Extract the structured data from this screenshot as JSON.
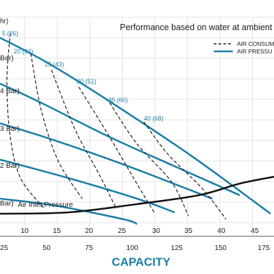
{
  "chart_data": {
    "type": "line",
    "title": "Performance based on water at ambient",
    "xlabel": "CAPACITY",
    "x_primary_ticks": [
      "25",
      "50",
      "75",
      "100",
      "125",
      "150",
      "175"
    ],
    "x_secondary_ticks": [
      "10",
      "15",
      "20",
      "25",
      "30",
      "35",
      "40",
      "45"
    ],
    "legend": [
      {
        "label": "AIR CONSUM",
        "style": "dashed",
        "color": "#1a1a1a"
      },
      {
        "label": "AIR PRESSU",
        "style": "solid",
        "color": "#1a7fa8"
      }
    ],
    "y_axis_fragment": "hr)",
    "pressure_labels": [
      " Bar)",
      "4 Bar)",
      "3 Bar)",
      "2 Bar)",
      "Bar)"
    ],
    "inlet_label": "Air Inlet Pressure",
    "consumption_labels": [
      "5 (26)",
      "20 (34)",
      "25 (43)",
      "30 (51)",
      "35 (60)",
      "40 (68)"
    ],
    "series": [
      {
        "kind": "pressure",
        "points": [
          [
            0,
            55
          ],
          [
            70,
            92
          ],
          [
            160,
            148
          ],
          [
            280,
            228
          ],
          [
            395,
            312
          ]
        ]
      },
      {
        "kind": "pressure",
        "points": [
          [
            0,
            122
          ],
          [
            60,
            150
          ],
          [
            160,
            200
          ],
          [
            260,
            245
          ],
          [
            350,
            285
          ]
        ]
      },
      {
        "kind": "pressure",
        "points": [
          [
            0,
            180
          ],
          [
            80,
            205
          ],
          [
            180,
            240
          ],
          [
            310,
            290
          ]
        ]
      },
      {
        "kind": "pressure",
        "points": [
          [
            0,
            233
          ],
          [
            100,
            260
          ],
          [
            200,
            290
          ],
          [
            255,
            310
          ]
        ]
      },
      {
        "kind": "pressure",
        "points": [
          [
            0,
            290
          ],
          [
            80,
            300
          ],
          [
            180,
            320
          ],
          [
            200,
            327
          ]
        ]
      },
      {
        "kind": "consumption",
        "points": [
          [
            15,
            48
          ],
          [
            10,
            120
          ],
          [
            15,
            200
          ],
          [
            30,
            260
          ],
          [
            65,
            305
          ]
        ]
      },
      {
        "kind": "consumption",
        "points": [
          [
            45,
            78
          ],
          [
            60,
            160
          ],
          [
            85,
            235
          ],
          [
            120,
            290
          ]
        ]
      },
      {
        "kind": "consumption",
        "points": [
          [
            75,
            102
          ],
          [
            110,
            190
          ],
          [
            145,
            255
          ],
          [
            170,
            305
          ]
        ]
      },
      {
        "kind": "consumption",
        "points": [
          [
            115,
            127
          ],
          [
            160,
            200
          ],
          [
            195,
            260
          ],
          [
            225,
            310
          ]
        ]
      },
      {
        "kind": "consumption",
        "points": [
          [
            160,
            150
          ],
          [
            200,
            210
          ],
          [
            250,
            265
          ],
          [
            275,
            315
          ]
        ]
      },
      {
        "kind": "consumption",
        "points": [
          [
            210,
            178
          ],
          [
            245,
            225
          ],
          [
            295,
            275
          ],
          [
            330,
            320
          ]
        ]
      },
      {
        "kind": "inlet",
        "points": [
          [
            0,
            312
          ],
          [
            100,
            310
          ],
          [
            200,
            298
          ],
          [
            290,
            285
          ],
          [
            350,
            268
          ],
          [
            400,
            258
          ]
        ]
      }
    ]
  }
}
